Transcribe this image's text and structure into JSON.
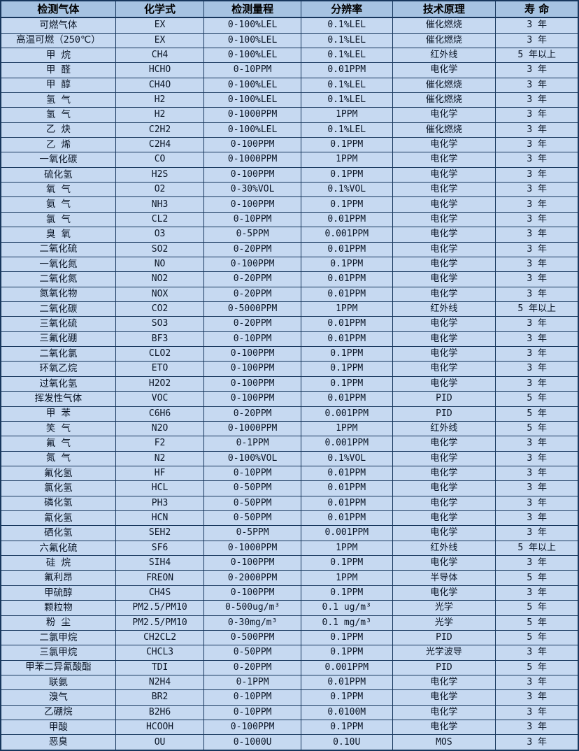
{
  "table": {
    "colors": {
      "header_bg": "#a6c3e2",
      "row_bg": "#c6d9f1",
      "border": "#17375d",
      "text": "#0a1526"
    },
    "headers": [
      "检测气体",
      "化学式",
      "检测量程",
      "分辨率",
      "技术原理",
      "寿 命"
    ],
    "col_widths_pct": [
      19.9,
      15.3,
      16.8,
      15.8,
      17.9,
      14.3
    ],
    "rows": [
      [
        "可燃气体",
        "EX",
        "0-100%LEL",
        "0.1%LEL",
        "催化燃烧",
        "3 年"
      ],
      [
        "高温可燃（250℃）",
        "EX",
        "0-100%LEL",
        "0.1%LEL",
        "催化燃烧",
        "3 年"
      ],
      [
        "甲 烷",
        "CH4",
        "0-100%LEL",
        "0.1%LEL",
        "红外线",
        "5 年以上"
      ],
      [
        "甲 醛",
        "HCHO",
        "0-10PPM",
        "0.01PPM",
        "电化学",
        "3 年"
      ],
      [
        "甲 醇",
        "CH4O",
        "0-100%LEL",
        "0.1%LEL",
        "催化燃烧",
        "3 年"
      ],
      [
        "氢 气",
        "H2",
        "0-100%LEL",
        "0.1%LEL",
        "催化燃烧",
        "3 年"
      ],
      [
        "氢 气",
        "H2",
        "0-1000PPM",
        "1PPM",
        "电化学",
        "3 年"
      ],
      [
        "乙 炔",
        "C2H2",
        "0-100%LEL",
        "0.1%LEL",
        "催化燃烧",
        "3 年"
      ],
      [
        "乙 烯",
        "C2H4",
        "0-100PPM",
        "0.1PPM",
        "电化学",
        "3 年"
      ],
      [
        "一氧化碳",
        "CO",
        "0-1000PPM",
        "1PPM",
        "电化学",
        "3 年"
      ],
      [
        "硫化氢",
        "H2S",
        "0-100PPM",
        "0.1PPM",
        "电化学",
        "3 年"
      ],
      [
        "氧 气",
        "O2",
        "0-30%VOL",
        "0.1%VOL",
        "电化学",
        "3 年"
      ],
      [
        "氨 气",
        "NH3",
        "0-100PPM",
        "0.1PPM",
        "电化学",
        "3 年"
      ],
      [
        "氯 气",
        "CL2",
        "0-10PPM",
        "0.01PPM",
        "电化学",
        "3 年"
      ],
      [
        "臭 氧",
        "O3",
        "0-5PPM",
        "0.001PPM",
        "电化学",
        "3 年"
      ],
      [
        "二氧化硫",
        "SO2",
        "0-20PPM",
        "0.01PPM",
        "电化学",
        "3 年"
      ],
      [
        "一氧化氮",
        "NO",
        "0-100PPM",
        "0.1PPM",
        "电化学",
        "3 年"
      ],
      [
        "二氧化氮",
        "NO2",
        "0-20PPM",
        "0.01PPM",
        "电化学",
        "3 年"
      ],
      [
        "氮氧化物",
        "NOX",
        "0-20PPM",
        "0.01PPM",
        "电化学",
        "3 年"
      ],
      [
        "二氧化碳",
        "CO2",
        "0-5000PPM",
        "1PPM",
        "红外线",
        "5 年以上"
      ],
      [
        "三氧化硫",
        "SO3",
        "0-20PPM",
        "0.01PPM",
        "电化学",
        "3 年"
      ],
      [
        "三氟化硼",
        "BF3",
        "0-10PPM",
        "0.01PPM",
        "电化学",
        "3 年"
      ],
      [
        "二氧化氯",
        "CLO2",
        "0-100PPM",
        "0.1PPM",
        "电化学",
        "3 年"
      ],
      [
        "环氧乙烷",
        "ETO",
        "0-100PPM",
        "0.1PPM",
        "电化学",
        "3 年"
      ],
      [
        "过氧化氢",
        "H2O2",
        "0-100PPM",
        "0.1PPM",
        "电化学",
        "3 年"
      ],
      [
        "挥发性气体",
        "VOC",
        "0-100PPM",
        "0.01PPM",
        "PID",
        "5 年"
      ],
      [
        "甲 苯",
        "C6H6",
        "0-20PPM",
        "0.001PPM",
        "PID",
        "5 年"
      ],
      [
        "笑 气",
        "N2O",
        "0-1000PPM",
        "1PPM",
        "红外线",
        "5 年"
      ],
      [
        "氟 气",
        "F2",
        "0-1PPM",
        "0.001PPM",
        "电化学",
        "3 年"
      ],
      [
        "氮 气",
        "N2",
        "0-100%VOL",
        "0.1%VOL",
        "电化学",
        "3 年"
      ],
      [
        "氟化氢",
        "HF",
        "0-10PPM",
        "0.01PPM",
        "电化学",
        "3 年"
      ],
      [
        "氯化氢",
        "HCL",
        "0-50PPM",
        "0.01PPM",
        "电化学",
        "3 年"
      ],
      [
        "磷化氢",
        "PH3",
        "0-50PPM",
        "0.01PPM",
        "电化学",
        "3 年"
      ],
      [
        "氰化氢",
        "HCN",
        "0-50PPM",
        "0.01PPM",
        "电化学",
        "3 年"
      ],
      [
        "硒化氢",
        "SEH2",
        "0-5PPM",
        "0.001PPM",
        "电化学",
        "3 年"
      ],
      [
        "六氟化硫",
        "SF6",
        "0-1000PPM",
        "1PPM",
        "红外线",
        "5 年以上"
      ],
      [
        "硅 烷",
        "SIH4",
        "0-100PPM",
        "0.1PPM",
        "电化学",
        "3 年"
      ],
      [
        "氟利昂",
        "FREON",
        "0-2000PPM",
        "1PPM",
        "半导体",
        "5 年"
      ],
      [
        "甲硫醇",
        "CH4S",
        "0-100PPM",
        "0.1PPM",
        "电化学",
        "3 年"
      ],
      [
        "颗粒物",
        "PM2.5/PM10",
        "0-500ug/m³",
        "0.1 ug/m³",
        "光学",
        "5 年"
      ],
      [
        "粉 尘",
        "PM2.5/PM10",
        "0-30mg/m³",
        "0.1 mg/m³",
        "光学",
        "5 年"
      ],
      [
        "二氯甲烷",
        "CH2CL2",
        "0-500PPM",
        "0.1PPM",
        "PID",
        "5 年"
      ],
      [
        "三氯甲烷",
        "CHCL3",
        "0-50PPM",
        "0.1PPM",
        "光学波导",
        "3 年"
      ],
      [
        "甲苯二异氰酸酯",
        "TDI",
        "0-20PPM",
        "0.001PPM",
        "PID",
        "5 年"
      ],
      [
        "联氨",
        "N2H4",
        "0-1PPM",
        "0.01PPM",
        "电化学",
        "3 年"
      ],
      [
        "溴气",
        "BR2",
        "0-10PPM",
        "0.1PPM",
        "电化学",
        "3 年"
      ],
      [
        "乙硼烷",
        "B2H6",
        "0-10PPM",
        "0.0100M",
        "电化学",
        "3 年"
      ],
      [
        "甲酸",
        "HCOOH",
        "0-100PPM",
        "0.1PPM",
        "电化学",
        "3 年"
      ],
      [
        "恶臭",
        "OU",
        "0-1000U",
        "0.10U",
        "MOS",
        "3 年"
      ]
    ]
  }
}
